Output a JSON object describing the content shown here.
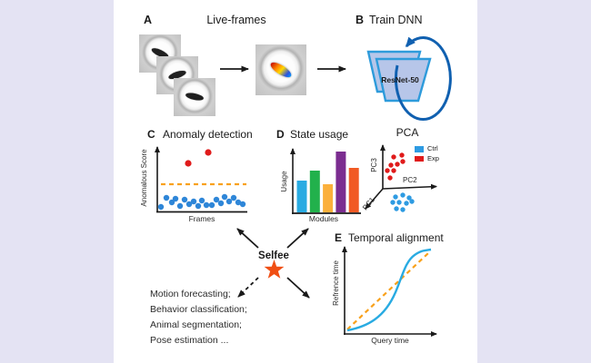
{
  "figure": {
    "background_color": "#E4E3F3",
    "sheet_color": "#FFFFFF",
    "panel_a": {
      "label": "A",
      "title": "Live-frames"
    },
    "panel_b": {
      "label": "B",
      "title": "Train DNN",
      "network": "ResNet-50"
    },
    "panel_c": {
      "label": "C",
      "title": "Anomaly detection",
      "ylabel": "Anomalous Score",
      "xlabel": "Frames",
      "colors": {
        "normal": "#2E86D8",
        "anomaly": "#E01B1B",
        "threshold": "#F9A11B"
      },
      "normal_points": [
        [
          177,
          228
        ],
        [
          183,
          218
        ],
        [
          189,
          223
        ],
        [
          193,
          219
        ],
        [
          198,
          227
        ],
        [
          203,
          220
        ],
        [
          208,
          225
        ],
        [
          213,
          222
        ],
        [
          218,
          227
        ],
        [
          222,
          221
        ],
        [
          227,
          226
        ],
        [
          233,
          226
        ],
        [
          238,
          220
        ],
        [
          243,
          224
        ],
        [
          247,
          217
        ],
        [
          252,
          222
        ],
        [
          257,
          218
        ],
        [
          262,
          223
        ],
        [
          267,
          225
        ]
      ],
      "anomaly_points": [
        [
          207,
          180
        ],
        [
          229,
          168
        ]
      ]
    },
    "panel_d": {
      "label": "D",
      "title": "State usage",
      "ylabel": "Usage",
      "xlabel": "Modules",
      "bars": [
        {
          "color": "#29ABE2",
          "height": 35
        },
        {
          "color": "#22B14C",
          "height": 46
        },
        {
          "color": "#FBB03B",
          "height": 31
        },
        {
          "color": "#7B2D90",
          "height": 67
        },
        {
          "color": "#F15A24",
          "height": 49
        }
      ]
    },
    "panel_pca": {
      "title": "PCA",
      "axis_labels": {
        "pc1": "PC1",
        "pc2": "PC2",
        "pc3": "PC3"
      },
      "legend": [
        {
          "label": "Ctrl",
          "color": "#2E9BE2"
        },
        {
          "label": "Exp",
          "color": "#E01B1B"
        }
      ],
      "ctrl_points": [
        [
          435,
          217
        ],
        [
          443,
          215
        ],
        [
          450,
          218
        ],
        [
          432,
          223
        ],
        [
          439,
          223
        ],
        [
          447,
          224
        ],
        [
          453,
          222
        ],
        [
          436,
          230
        ],
        [
          443,
          231
        ]
      ],
      "exp_points": [
        [
          433,
          173
        ],
        [
          442,
          171
        ],
        [
          430,
          182
        ],
        [
          437,
          181
        ],
        [
          443,
          178
        ],
        [
          426,
          188
        ],
        [
          433,
          188
        ],
        [
          429,
          196
        ]
      ]
    },
    "panel_e": {
      "label": "E",
      "title": "Temporal alignment",
      "ylabel": "Refrence time",
      "xlabel": "Query time",
      "colors": {
        "warp_curve": "#29ABE2",
        "identity_line": "#F9A11B"
      }
    },
    "center": {
      "label": "Selfee",
      "star_color": "#F04F14"
    },
    "applications": [
      "Motion forecasting;",
      "Behavior classification;",
      "Animal segmentation;",
      "Pose estimation ..."
    ]
  }
}
